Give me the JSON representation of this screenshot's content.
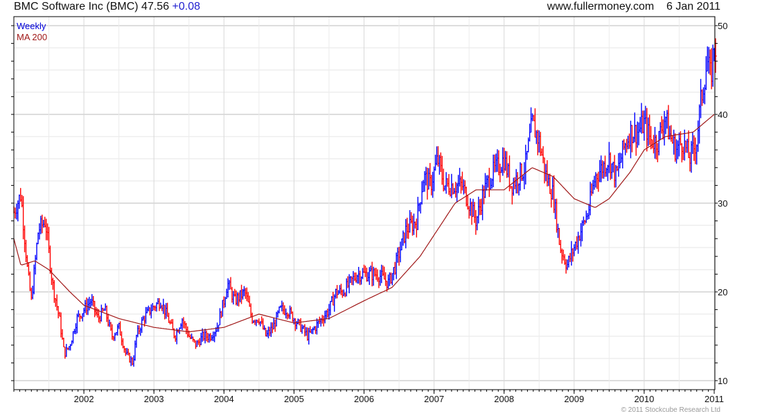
{
  "header": {
    "title": "BMC Software Inc (BMC)",
    "price": "47.56",
    "change": "+0.08",
    "site": "www.fullermoney.com",
    "date": "6 Jan 2011"
  },
  "legend": {
    "weekly": "Weekly",
    "ma": "MA 200"
  },
  "footer": {
    "copyright": "© 2011 Stockcube Research Ltd"
  },
  "colors": {
    "up": "#0000ff",
    "down": "#ff0000",
    "ma": "#a01818"
  },
  "chart_data": {
    "type": "line",
    "title": "BMC Software Inc (BMC)",
    "xlabel": "",
    "ylabel": "",
    "xlim": [
      2001.0,
      2011.02
    ],
    "ylim": [
      9,
      51
    ],
    "x_ticks": [
      "2002",
      "2003",
      "2004",
      "2005",
      "2006",
      "2007",
      "2008",
      "2009",
      "2010",
      "2011"
    ],
    "y_ticks": [
      "10",
      "20",
      "30",
      "40",
      "50"
    ],
    "grid": true,
    "legend_position": "top-left",
    "series": [
      {
        "name": "Weekly",
        "style": "ohlc-bars",
        "points": [
          [
            2001.0,
            29
          ],
          [
            2001.1,
            31
          ],
          [
            2001.2,
            22
          ],
          [
            2001.25,
            19
          ],
          [
            2001.35,
            27
          ],
          [
            2001.45,
            28
          ],
          [
            2001.55,
            21
          ],
          [
            2001.65,
            17
          ],
          [
            2001.72,
            13
          ],
          [
            2001.8,
            14
          ],
          [
            2001.9,
            17
          ],
          [
            2002.0,
            18
          ],
          [
            2002.1,
            19
          ],
          [
            2002.2,
            17
          ],
          [
            2002.3,
            18
          ],
          [
            2002.4,
            15
          ],
          [
            2002.5,
            16
          ],
          [
            2002.6,
            13
          ],
          [
            2002.7,
            12
          ],
          [
            2002.75,
            15
          ],
          [
            2002.85,
            17
          ],
          [
            2002.95,
            18
          ],
          [
            2003.1,
            19
          ],
          [
            2003.2,
            17
          ],
          [
            2003.3,
            15
          ],
          [
            2003.4,
            17
          ],
          [
            2003.5,
            15
          ],
          [
            2003.6,
            14
          ],
          [
            2003.7,
            15
          ],
          [
            2003.8,
            15
          ],
          [
            2003.9,
            16
          ],
          [
            2004.0,
            19
          ],
          [
            2004.05,
            21
          ],
          [
            2004.15,
            19
          ],
          [
            2004.3,
            20
          ],
          [
            2004.4,
            17
          ],
          [
            2004.5,
            17
          ],
          [
            2004.6,
            15
          ],
          [
            2004.7,
            16
          ],
          [
            2004.8,
            18
          ],
          [
            2004.9,
            18
          ],
          [
            2005.0,
            17
          ],
          [
            2005.1,
            16
          ],
          [
            2005.2,
            15
          ],
          [
            2005.3,
            16
          ],
          [
            2005.4,
            17
          ],
          [
            2005.5,
            18
          ],
          [
            2005.6,
            20
          ],
          [
            2005.7,
            20
          ],
          [
            2005.8,
            21
          ],
          [
            2005.9,
            22
          ],
          [
            2006.0,
            22
          ],
          [
            2006.2,
            22
          ],
          [
            2006.35,
            21
          ],
          [
            2006.45,
            23
          ],
          [
            2006.6,
            27
          ],
          [
            2006.75,
            28
          ],
          [
            2006.85,
            33
          ],
          [
            2006.95,
            32
          ],
          [
            2007.05,
            35
          ],
          [
            2007.15,
            32
          ],
          [
            2007.3,
            32
          ],
          [
            2007.4,
            32
          ],
          [
            2007.5,
            30
          ],
          [
            2007.6,
            28
          ],
          [
            2007.7,
            31
          ],
          [
            2007.8,
            33
          ],
          [
            2007.9,
            34
          ],
          [
            2008.0,
            35
          ],
          [
            2008.1,
            32
          ],
          [
            2008.2,
            33
          ],
          [
            2008.3,
            34
          ],
          [
            2008.4,
            39
          ],
          [
            2008.5,
            37
          ],
          [
            2008.6,
            33
          ],
          [
            2008.7,
            31
          ],
          [
            2008.8,
            25
          ],
          [
            2008.9,
            23
          ],
          [
            2009.0,
            25
          ],
          [
            2009.1,
            27
          ],
          [
            2009.2,
            29
          ],
          [
            2009.3,
            33
          ],
          [
            2009.4,
            34
          ],
          [
            2009.5,
            35
          ],
          [
            2009.6,
            33
          ],
          [
            2009.7,
            36
          ],
          [
            2009.8,
            38
          ],
          [
            2009.9,
            38
          ],
          [
            2010.0,
            39
          ],
          [
            2010.1,
            37
          ],
          [
            2010.2,
            37
          ],
          [
            2010.3,
            40
          ],
          [
            2010.35,
            38
          ],
          [
            2010.45,
            36
          ],
          [
            2010.55,
            37
          ],
          [
            2010.65,
            35
          ],
          [
            2010.75,
            37
          ],
          [
            2010.8,
            41
          ],
          [
            2010.9,
            46
          ],
          [
            2010.95,
            44
          ],
          [
            2011.0,
            48
          ],
          [
            2011.02,
            47.56
          ]
        ]
      },
      {
        "name": "MA 200",
        "style": "line",
        "points": [
          [
            2001.0,
            26
          ],
          [
            2001.1,
            23
          ],
          [
            2001.3,
            23.5
          ],
          [
            2001.5,
            22.5
          ],
          [
            2001.8,
            20
          ],
          [
            2002.0,
            18.5
          ],
          [
            2002.5,
            17
          ],
          [
            2003.0,
            16
          ],
          [
            2003.5,
            15.5
          ],
          [
            2004.0,
            16
          ],
          [
            2004.5,
            17.5
          ],
          [
            2005.0,
            16.5
          ],
          [
            2005.5,
            17
          ],
          [
            2006.0,
            19
          ],
          [
            2006.4,
            20.5
          ],
          [
            2006.8,
            24
          ],
          [
            2007.3,
            30
          ],
          [
            2007.6,
            31.5
          ],
          [
            2008.0,
            31.5
          ],
          [
            2008.4,
            34
          ],
          [
            2008.7,
            33
          ],
          [
            2009.0,
            30.5
          ],
          [
            2009.3,
            29.5
          ],
          [
            2009.5,
            30.5
          ],
          [
            2009.8,
            33.5
          ],
          [
            2010.0,
            36
          ],
          [
            2010.3,
            37.5
          ],
          [
            2010.7,
            38
          ],
          [
            2011.0,
            40
          ]
        ]
      }
    ]
  }
}
